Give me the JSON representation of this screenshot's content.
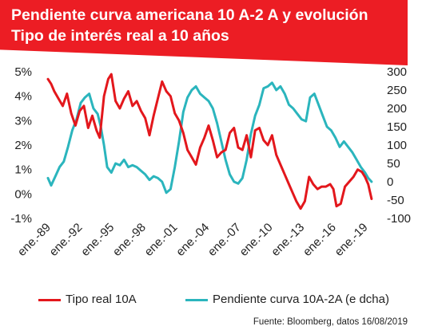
{
  "title": "Pendiente curva americana 10 A-2 A y evolución Tipo de interés real a 10 años",
  "source": "Fuente: Bloomberg, datos 16/08/2019",
  "colors": {
    "banner": "#ec1d24",
    "real_rate": "#e3171c",
    "slope": "#2bb5bd"
  },
  "chart_data": {
    "type": "line",
    "title": "Pendiente curva americana 10 A-2 A y evolución Tipo de interés real a 10 años",
    "x_ticks": [
      "ene.-89",
      "ene.-92",
      "ene.-95",
      "ene.-98",
      "ene.-01",
      "ene.-04",
      "ene.-07",
      "ene.-10",
      "ene.-13",
      "ene.-16",
      "ene.-19"
    ],
    "xlim": [
      1989.0,
      2019.7
    ],
    "y_left": {
      "ticks": [
        "5%",
        "4%",
        "3%",
        "2%",
        "1%",
        "0%",
        "-1%"
      ],
      "ylim": [
        -1,
        5
      ]
    },
    "y_right": {
      "ticks": [
        "300",
        "250",
        "200",
        "150",
        "100",
        "50",
        "0",
        "-50",
        "-100"
      ],
      "ylim": [
        -100,
        300
      ]
    },
    "grid": false,
    "legend": "bottom",
    "series": [
      {
        "name": "Tipo real 10A",
        "axis": "left",
        "x": [
          1989.0,
          1989.3,
          1989.6,
          1990.0,
          1990.4,
          1990.8,
          1991.2,
          1991.6,
          1992.0,
          1992.4,
          1992.8,
          1993.2,
          1993.6,
          1993.9,
          1994.3,
          1994.7,
          1995.0,
          1995.4,
          1995.8,
          1996.2,
          1996.6,
          1997.0,
          1997.4,
          1997.8,
          1998.2,
          1998.6,
          1999.0,
          1999.4,
          1999.8,
          2000.2,
          2000.6,
          2001.0,
          2001.4,
          2001.8,
          2002.2,
          2002.6,
          2003.0,
          2003.4,
          2003.8,
          2004.2,
          2004.6,
          2005.0,
          2005.4,
          2005.8,
          2006.2,
          2006.6,
          2007.0,
          2007.4,
          2007.8,
          2008.2,
          2008.6,
          2009.0,
          2009.4,
          2009.8,
          2010.2,
          2010.6,
          2011.0,
          2011.4,
          2011.8,
          2012.2,
          2012.5,
          2012.9,
          2013.3,
          2013.7,
          2014.1,
          2014.5,
          2014.9,
          2015.3,
          2015.7,
          2016.0,
          2016.3,
          2016.7,
          2017.1,
          2017.5,
          2017.9,
          2018.3,
          2018.7,
          2019.0,
          2019.3,
          2019.62
        ],
        "values": [
          4.7,
          4.5,
          4.2,
          3.9,
          3.6,
          4.1,
          3.3,
          2.8,
          3.4,
          3.6,
          2.7,
          3.2,
          2.6,
          2.3,
          4.0,
          4.7,
          4.9,
          3.8,
          3.5,
          3.9,
          4.2,
          3.6,
          3.8,
          3.4,
          3.1,
          2.4,
          3.2,
          3.9,
          4.6,
          4.2,
          4.0,
          3.3,
          3.0,
          2.5,
          1.8,
          1.5,
          1.2,
          1.9,
          2.3,
          2.8,
          2.2,
          1.5,
          1.7,
          1.8,
          2.5,
          2.7,
          1.9,
          1.8,
          2.4,
          1.5,
          2.6,
          2.7,
          2.2,
          2.0,
          2.4,
          1.6,
          1.2,
          0.8,
          0.4,
          0.0,
          -0.3,
          -0.6,
          -0.3,
          0.7,
          0.4,
          0.2,
          0.3,
          0.3,
          0.4,
          0.2,
          -0.5,
          -0.4,
          0.3,
          0.5,
          0.7,
          1.0,
          0.9,
          0.7,
          0.4,
          -0.2
        ]
      },
      {
        "name": "Pendiente curva 10A-2A (e dcha)",
        "axis": "right",
        "x": [
          1989.0,
          1989.3,
          1989.7,
          1990.1,
          1990.5,
          1990.9,
          1991.3,
          1991.7,
          1992.1,
          1992.5,
          1992.9,
          1993.3,
          1993.7,
          1994.0,
          1994.3,
          1994.6,
          1995.0,
          1995.4,
          1995.8,
          1996.2,
          1996.6,
          1997.0,
          1997.4,
          1997.8,
          1998.2,
          1998.6,
          1999.0,
          1999.4,
          1999.8,
          2000.2,
          2000.6,
          2001.0,
          2001.4,
          2001.8,
          2002.2,
          2002.6,
          2003.0,
          2003.4,
          2003.8,
          2004.2,
          2004.6,
          2005.0,
          2005.4,
          2005.8,
          2006.2,
          2006.6,
          2007.0,
          2007.4,
          2007.8,
          2008.2,
          2008.6,
          2009.0,
          2009.4,
          2009.8,
          2010.2,
          2010.6,
          2011.0,
          2011.4,
          2011.8,
          2012.2,
          2012.6,
          2013.0,
          2013.4,
          2013.8,
          2014.2,
          2014.6,
          2015.0,
          2015.4,
          2015.8,
          2016.2,
          2016.6,
          2017.0,
          2017.4,
          2017.8,
          2018.2,
          2018.6,
          2019.0,
          2019.3,
          2019.62
        ],
        "values": [
          10,
          -10,
          15,
          40,
          55,
          95,
          140,
          170,
          215,
          230,
          240,
          200,
          185,
          150,
          100,
          40,
          25,
          50,
          45,
          60,
          40,
          45,
          40,
          30,
          20,
          5,
          15,
          10,
          0,
          -30,
          -20,
          40,
          110,
          190,
          230,
          250,
          260,
          240,
          230,
          220,
          200,
          160,
          110,
          60,
          20,
          0,
          -5,
          10,
          60,
          130,
          180,
          210,
          255,
          260,
          270,
          250,
          260,
          240,
          210,
          200,
          185,
          170,
          165,
          230,
          240,
          210,
          180,
          150,
          140,
          120,
          95,
          110,
          95,
          80,
          60,
          40,
          25,
          10,
          0
        ]
      }
    ]
  }
}
